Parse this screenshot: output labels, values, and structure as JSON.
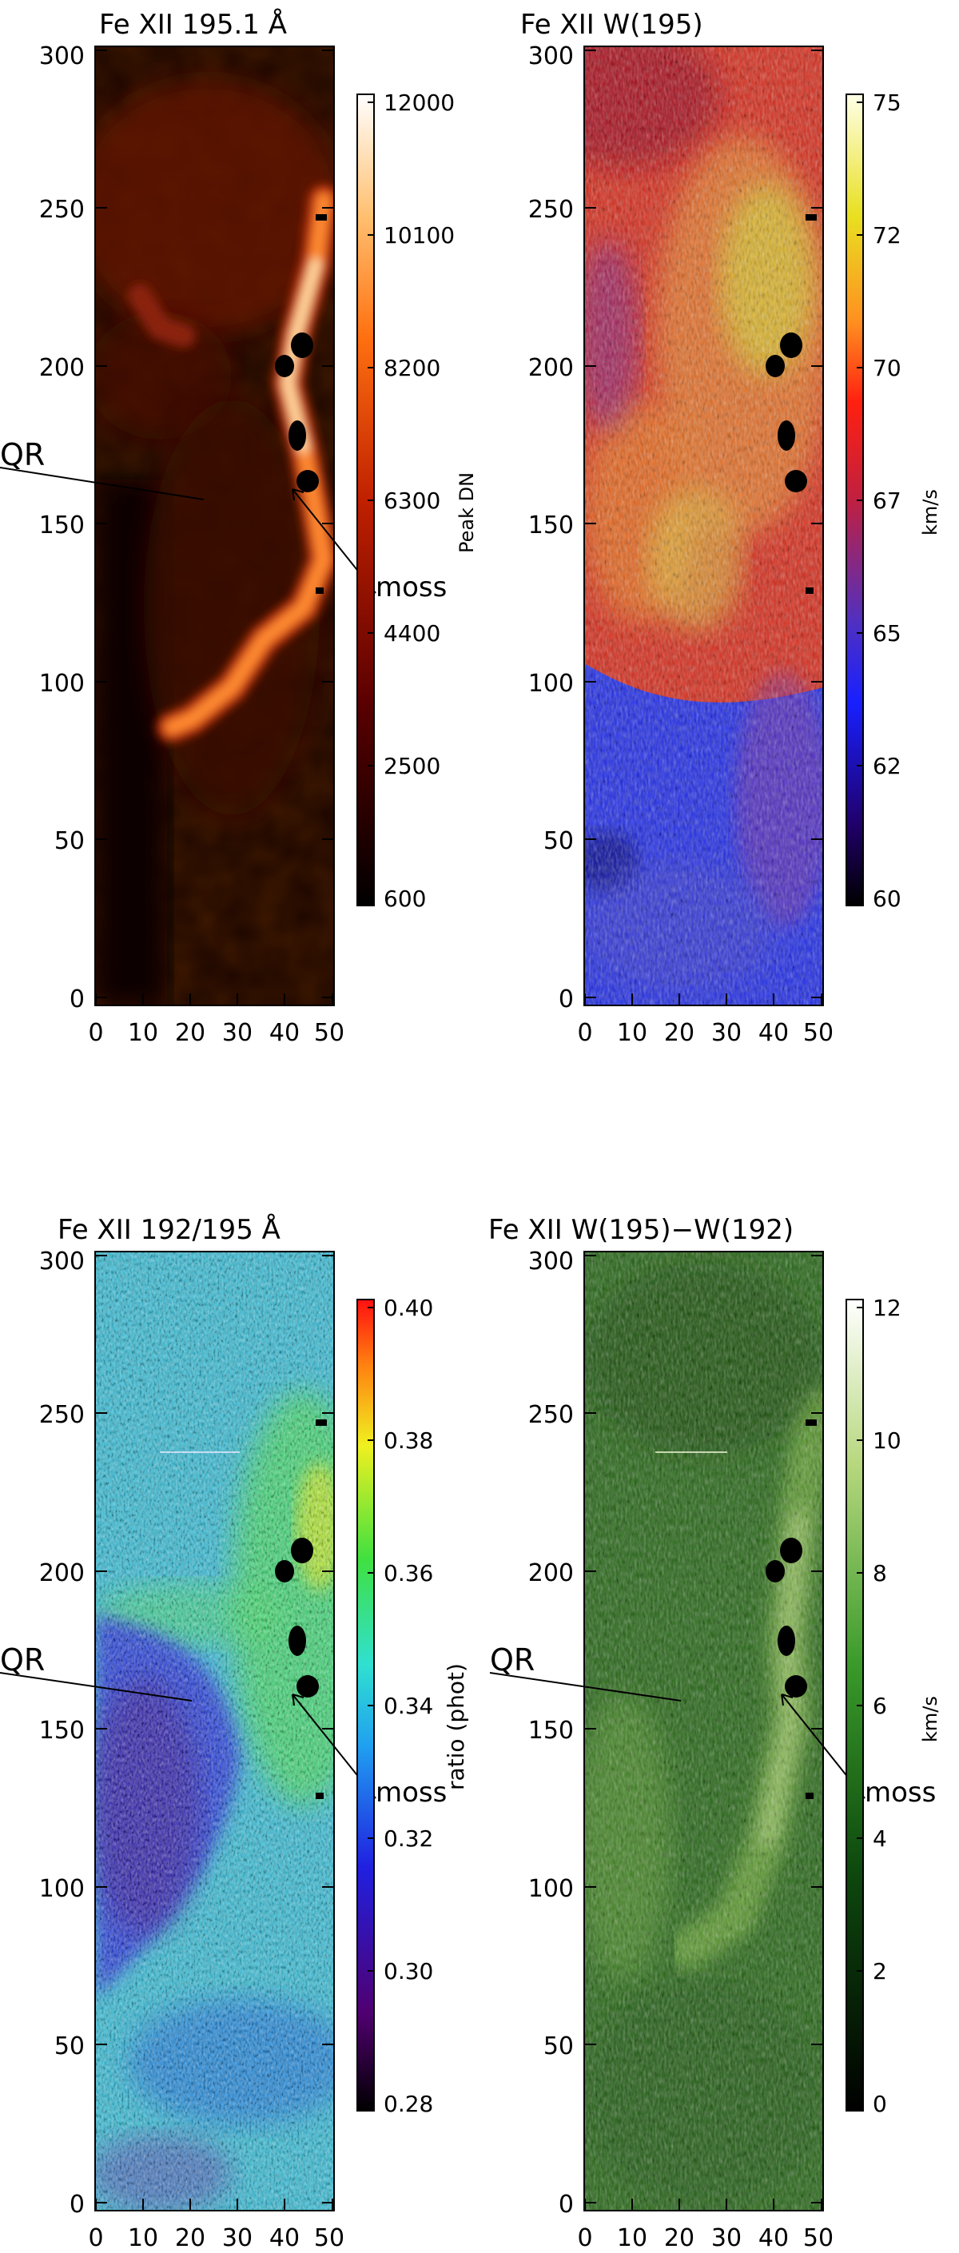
{
  "chart_data": [
    {
      "type": "heatmap",
      "title": "Fe XII 195.1 Å",
      "x_ticks": [
        "0",
        "10",
        "20",
        "30",
        "40",
        "50"
      ],
      "y_ticks": [
        "0",
        "50",
        "100",
        "150",
        "200",
        "250",
        "300"
      ],
      "xlim": [
        0,
        50
      ],
      "ylim": [
        0,
        300
      ],
      "colorbar": {
        "label": "Peak DN",
        "ticks": [
          "600",
          "2500",
          "4400",
          "6300",
          "8200",
          "10100",
          "12000"
        ],
        "range": [
          600,
          12000
        ],
        "colormap": "red-temperature"
      },
      "annotations": [
        "QR",
        "moss"
      ],
      "background_color": "#1a0500"
    },
    {
      "type": "heatmap",
      "title": "Fe XII W(195)",
      "x_ticks": [
        "0",
        "10",
        "20",
        "30",
        "40",
        "50"
      ],
      "y_ticks": [
        "0",
        "50",
        "100",
        "150",
        "200",
        "250",
        "300"
      ],
      "xlim": [
        0,
        50
      ],
      "ylim": [
        0,
        300
      ],
      "colorbar": {
        "label": "km/s",
        "ticks": [
          "60",
          "62",
          "65",
          "67",
          "70",
          "72",
          "75"
        ],
        "range": [
          60,
          75
        ],
        "colormap": "idl-rainbow"
      },
      "annotations": [],
      "background_color": "#d83020"
    },
    {
      "type": "heatmap",
      "title": "Fe XII 192/195 Å",
      "x_ticks": [
        "0",
        "10",
        "20",
        "30",
        "40",
        "50"
      ],
      "y_ticks": [
        "0",
        "50",
        "100",
        "150",
        "200",
        "250",
        "300"
      ],
      "xlim": [
        0,
        50
      ],
      "ylim": [
        0,
        300
      ],
      "colorbar": {
        "label": "ratio (phot)",
        "ticks": [
          "0.28",
          "0.30",
          "0.32",
          "0.34",
          "0.36",
          "0.38",
          "0.40"
        ],
        "range": [
          0.28,
          0.4
        ],
        "colormap": "rainbow"
      },
      "annotations": [
        "QR",
        "moss"
      ],
      "background_color": "#40c0d8"
    },
    {
      "type": "heatmap",
      "title": "Fe XII W(195)−W(192)",
      "x_ticks": [
        "0",
        "10",
        "20",
        "30",
        "40",
        "50"
      ],
      "y_ticks": [
        "0",
        "50",
        "100",
        "150",
        "200",
        "250",
        "300"
      ],
      "xlim": [
        0,
        50
      ],
      "ylim": [
        0,
        300
      ],
      "colorbar": {
        "label": "km/s",
        "ticks": [
          "0",
          "2",
          "4",
          "6",
          "8",
          "10",
          "12"
        ],
        "range": [
          0,
          12
        ],
        "colormap": "green"
      },
      "annotations": [
        "QR",
        "moss"
      ],
      "background_color": "#2a6a1a"
    }
  ]
}
